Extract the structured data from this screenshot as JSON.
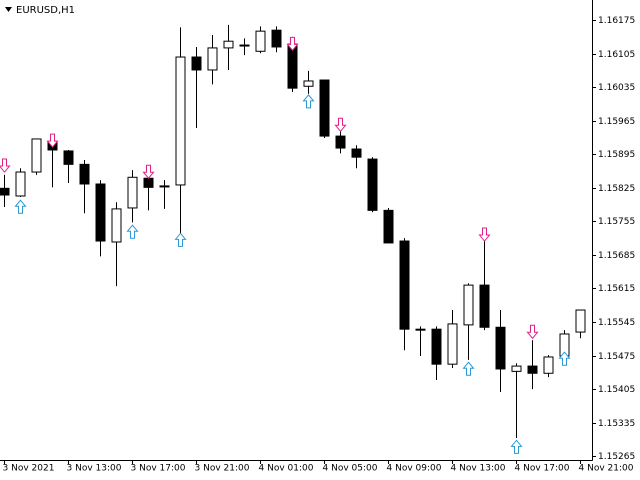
{
  "chart_data": {
    "type": "candlestick",
    "title": "EURUSD,H1",
    "categories": [
      "3 Nov 2021",
      null,
      null,
      null,
      "3 Nov 13:00",
      null,
      null,
      null,
      "3 Nov 17:00",
      null,
      null,
      null,
      "3 Nov 21:00",
      null,
      null,
      null,
      "4 Nov 01:00",
      null,
      null,
      null,
      "4 Nov 05:00",
      null,
      null,
      null,
      "4 Nov 09:00",
      null,
      null,
      null,
      "4 Nov 13:00",
      null,
      null,
      null,
      "4 Nov 17:00",
      null,
      null,
      null,
      "4 Nov 21:00"
    ],
    "open": [
      1.15824,
      1.15808,
      1.15858,
      1.15922,
      1.15902,
      1.15874,
      1.15833,
      1.15712,
      1.15783,
      1.15845,
      1.15829,
      1.15831,
      1.16098,
      1.16071,
      1.16117,
      1.16123,
      1.1611,
      1.16154,
      1.16125,
      1.16037,
      1.1605,
      1.15933,
      1.15906,
      1.15885,
      1.15778,
      1.15714,
      1.1553,
      1.1553,
      1.15457,
      1.15539,
      1.15622,
      1.15534,
      1.15442,
      1.15453,
      1.15438,
      1.15474,
      1.15524
    ],
    "high": [
      1.15852,
      1.15866,
      1.15927,
      1.15931,
      1.15904,
      1.15883,
      1.15841,
      1.15795,
      1.15862,
      1.15854,
      1.15841,
      1.1616,
      1.16119,
      1.16144,
      1.16165,
      1.16137,
      1.16162,
      1.16162,
      1.1614,
      1.16069,
      1.1605,
      1.1595,
      1.15914,
      1.15889,
      1.15783,
      1.1572,
      1.15536,
      1.15536,
      1.1557,
      1.15626,
      1.15716,
      1.1557,
      1.15459,
      1.15507,
      1.15476,
      1.15528,
      1.1557
    ],
    "low": [
      1.15785,
      1.15806,
      1.15852,
      1.15826,
      1.15835,
      1.15772,
      1.15682,
      1.1562,
      1.15753,
      1.15778,
      1.15781,
      1.1573,
      1.1595,
      1.16041,
      1.16071,
      1.16102,
      1.16106,
      1.16108,
      1.16025,
      1.16021,
      1.15929,
      1.15897,
      1.15866,
      1.15774,
      1.1571,
      1.15486,
      1.15474,
      1.15424,
      1.15449,
      1.15466,
      1.15528,
      1.15399,
      1.15303,
      1.15405,
      1.1543,
      1.15455,
      1.15511
    ],
    "close": [
      1.1581,
      1.15858,
      1.15927,
      1.15904,
      1.15874,
      1.15833,
      1.15714,
      1.15781,
      1.15847,
      1.15826,
      1.15829,
      1.16098,
      1.16071,
      1.16117,
      1.16131,
      1.16123,
      1.16152,
      1.16119,
      1.16033,
      1.16048,
      1.15933,
      1.15908,
      1.15889,
      1.15778,
      1.1571,
      1.1553,
      1.1553,
      1.15457,
      1.15541,
      1.15622,
      1.15534,
      1.15447,
      1.15453,
      1.15438,
      1.15472,
      1.1552,
      1.1557
    ],
    "up_arrows": [
      null,
      1.15799,
      null,
      null,
      null,
      null,
      null,
      null,
      1.15747,
      null,
      null,
      1.1573,
      null,
      null,
      null,
      null,
      null,
      null,
      null,
      1.16019,
      null,
      null,
      null,
      null,
      null,
      null,
      null,
      null,
      null,
      1.15461,
      null,
      null,
      1.15298,
      null,
      null,
      1.15482,
      null
    ],
    "down_arrows": [
      1.15858,
      null,
      null,
      1.1591,
      null,
      null,
      null,
      null,
      null,
      1.15845,
      null,
      null,
      null,
      null,
      null,
      null,
      null,
      null,
      1.16112,
      null,
      null,
      1.15943,
      null,
      null,
      null,
      null,
      null,
      null,
      null,
      null,
      1.15714,
      null,
      null,
      1.15511,
      null,
      null,
      null
    ],
    "up_color": "#ffffff",
    "down_color": "#000000",
    "up_arrow_color": "#2b9ad6",
    "down_arrow_color": "#e0208a",
    "ylim": [
      1.15257,
      1.16217
    ],
    "yticks": [
      1.16175,
      1.16105,
      1.16035,
      1.15965,
      1.15895,
      1.15825,
      1.15755,
      1.15685,
      1.15615,
      1.15545,
      1.15475,
      1.15405,
      1.15335,
      1.15265
    ]
  }
}
